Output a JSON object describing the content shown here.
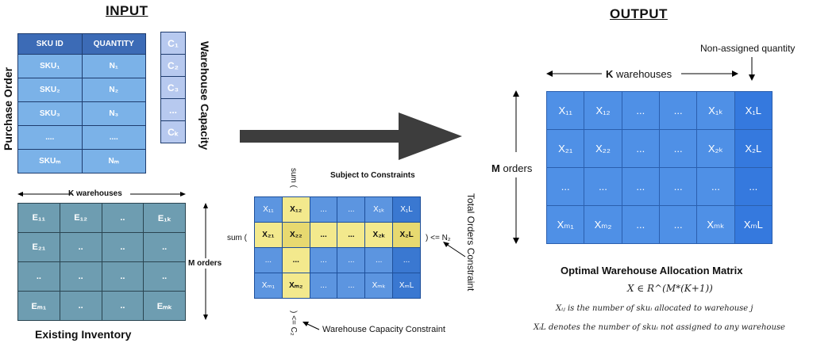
{
  "input_title": "INPUT",
  "output_title": "OUTPUT",
  "purchase_order": {
    "label": "Purchase Order",
    "headers": [
      "SKU ID",
      "QUANTITY"
    ],
    "rows": [
      [
        "SKU₁",
        "N₁"
      ],
      [
        "SKU₂",
        "N₂"
      ],
      [
        "SKU₃",
        "N₃"
      ],
      [
        "....",
        "...."
      ],
      [
        "SKUₘ",
        "Nₘ"
      ]
    ]
  },
  "warehouse_capacity": {
    "label": "Warehouse Capacity",
    "cells": [
      "C₁",
      "C₂",
      "C₃",
      "...",
      "Cₖ"
    ]
  },
  "inventory": {
    "k_label": "K warehouses",
    "m_label": "M orders",
    "title": "Existing Inventory",
    "rows": [
      [
        "E₁₁",
        "E₁₂",
        "..",
        "E₁ₖ"
      ],
      [
        "E₂₁",
        "..",
        "..",
        ".."
      ],
      [
        "..",
        "..",
        "..",
        ".."
      ],
      [
        "Eₘ₁",
        "..",
        "..",
        "Eₘₖ"
      ]
    ]
  },
  "constraints": {
    "title": "Subject to Constraints",
    "sum_col": "sum (",
    "sum_row": "sum (",
    "row_le": ") <= N₂",
    "col_le": ") <= C₂",
    "total_label": "Total Orders Constraint",
    "warehouse_label": "Warehouse Capacity Constraint",
    "rows": [
      [
        "X₁₁",
        "X₁₂",
        "...",
        "...",
        "X₁ₖ",
        "X₁L"
      ],
      [
        "X₂₁",
        "X₂₂",
        "...",
        "...",
        "X₂ₖ",
        "X₂L"
      ],
      [
        "...",
        "...",
        "...",
        "...",
        "...",
        "..."
      ],
      [
        "Xₘ₁",
        "Xₘ₂",
        "...",
        "...",
        "Xₘₖ",
        "XₘL"
      ]
    ]
  },
  "output": {
    "k_label": "K warehouses",
    "m_label": "M orders",
    "non_assigned": "Non-assigned quantity",
    "rows": [
      [
        "X₁₁",
        "X₁₂",
        "...",
        "...",
        "X₁ₖ",
        "X₁L"
      ],
      [
        "X₂₁",
        "X₂₂",
        "...",
        "...",
        "X₂ₖ",
        "X₂L"
      ],
      [
        "...",
        "...",
        "...",
        "...",
        "...",
        "..."
      ],
      [
        "Xₘ₁",
        "Xₘ₂",
        "...",
        "...",
        "Xₘₖ",
        "XₘL"
      ]
    ],
    "matrix_title": "Optimal Warehouse Allocation Matrix",
    "formula": "X ∈ R^(M*(K+1))",
    "note1": "Xᵢⱼ is the number of skuᵢ allocated to warehouse j",
    "note2": "XᵢL denotes the number of skuᵢ not assigned to any warehouse"
  },
  "colors": {
    "header_blue": "#3c6bb6",
    "cell_blue": "#7bb2e8",
    "inventory_teal": "#6e9db1",
    "highlight_yellow": "#f3e98d",
    "output_blue": "#4f90e6"
  }
}
